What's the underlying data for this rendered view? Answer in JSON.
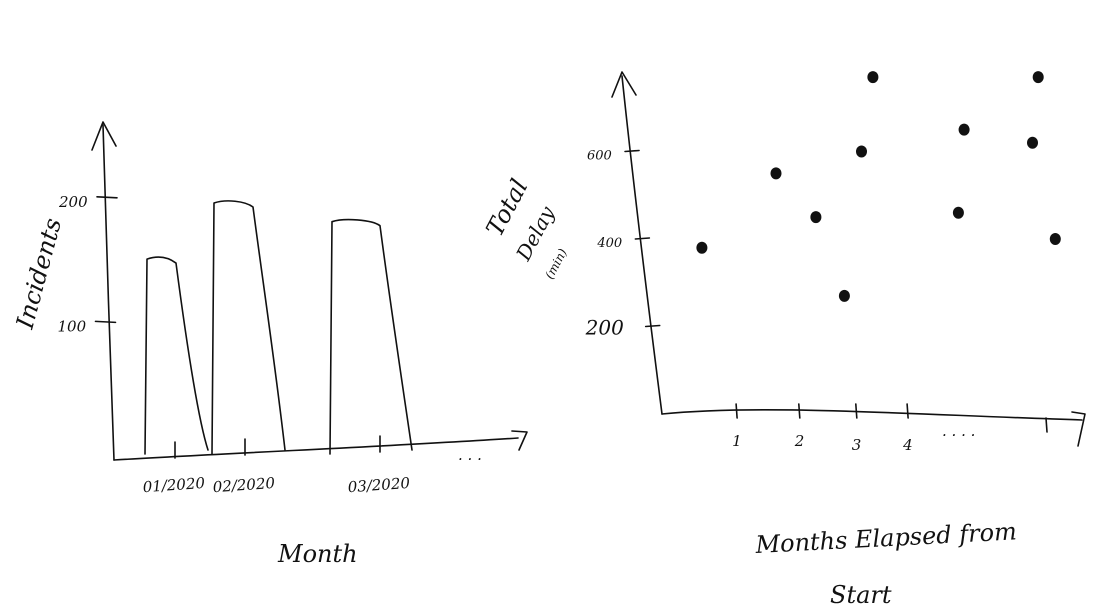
{
  "chart_data": [
    {
      "type": "bar",
      "xlabel": "Month",
      "ylabel": "Incidents",
      "categories": [
        "01/2020",
        "02/2020",
        "03/2020"
      ],
      "values": [
        150,
        195,
        180
      ],
      "yticks": [
        "100",
        "200"
      ],
      "ellipsis": ". . .",
      "ylim": [
        0,
        260
      ]
    },
    {
      "type": "scatter",
      "xlabel_line1": "Months Elapsed from",
      "xlabel_line2": "Start",
      "ylabel_line1": "Total",
      "ylabel_line2": "Delay",
      "ylabel_line3": "(min)",
      "yticks": [
        "200",
        "400",
        "600"
      ],
      "xticks": [
        "1",
        "2",
        "3",
        "4"
      ],
      "ellipsis": ". . . .",
      "xlim": [
        0,
        7.4
      ],
      "ylim": [
        0,
        800
      ],
      "points": [
        {
          "x": 0.7,
          "y": 380
        },
        {
          "x": 2.0,
          "y": 550
        },
        {
          "x": 2.7,
          "y": 450
        },
        {
          "x": 3.2,
          "y": 270
        },
        {
          "x": 3.5,
          "y": 600
        },
        {
          "x": 3.7,
          "y": 770
        },
        {
          "x": 5.2,
          "y": 460
        },
        {
          "x": 5.3,
          "y": 650
        },
        {
          "x": 6.5,
          "y": 620
        },
        {
          "x": 6.6,
          "y": 770
        },
        {
          "x": 6.9,
          "y": 400
        }
      ]
    }
  ]
}
